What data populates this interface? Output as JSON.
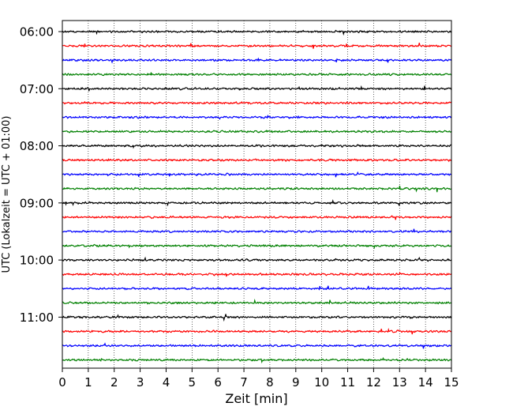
{
  "chart_data": {
    "type": "line",
    "title": "",
    "xlabel": "Zeit  [min]",
    "ylabel": "UTC (Lokalzeit = UTC + 01:00)",
    "xlim": [
      0,
      15
    ],
    "x_ticks": [
      "0",
      "1",
      "2",
      "3",
      "4",
      "5",
      "6",
      "7",
      "8",
      "9",
      "10",
      "11",
      "12",
      "13",
      "14",
      "15"
    ],
    "y_time_labels": [
      "06:00",
      "07:00",
      "08:00",
      "09:00",
      "10:00",
      "11:00"
    ],
    "grid_x": true,
    "trace_interval_min": 15,
    "first_trace_time": "06:00",
    "trace_count": 24,
    "color_cycle": [
      "#000000",
      "#ff0000",
      "#0000ff",
      "#008000"
    ]
  }
}
